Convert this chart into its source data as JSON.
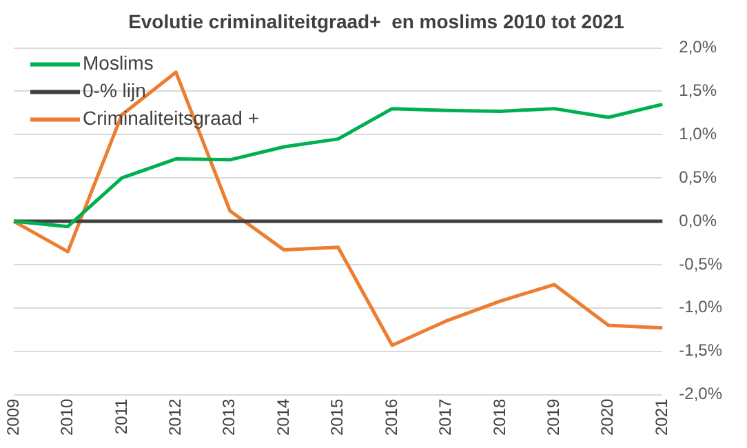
{
  "chart_data": {
    "type": "line",
    "title": "Evolutie criminaliteitgraad+  en moslims 2010 tot 2021",
    "categories": [
      "2009",
      "2010",
      "2011",
      "2012",
      "2013",
      "2014",
      "2015",
      "2016",
      "2017",
      "2018",
      "2019",
      "2020",
      "2021"
    ],
    "series": [
      {
        "name": "Moslims",
        "color": "#00b050",
        "values": [
          0,
          -0.06,
          0.5,
          0.72,
          0.71,
          0.86,
          0.95,
          1.3,
          1.28,
          1.27,
          1.3,
          1.2,
          1.35
        ]
      },
      {
        "name": "0-% lijn",
        "color": "#404040",
        "values": [
          0,
          0,
          0,
          0,
          0,
          0,
          0,
          0,
          0,
          0,
          0,
          0,
          0
        ]
      },
      {
        "name": "Criminaliteitsgraad +",
        "color": "#ed7d31",
        "values": [
          0,
          -0.35,
          1.23,
          1.72,
          0.12,
          -0.33,
          -0.3,
          -1.43,
          -1.15,
          -0.92,
          -0.73,
          -1.2,
          -1.23
        ]
      }
    ],
    "ylim": [
      -2,
      2
    ],
    "yticks": [
      {
        "value": -2,
        "label": "-2,0%"
      },
      {
        "value": -1.5,
        "label": "-1,5%"
      },
      {
        "value": -1,
        "label": "-1,0%"
      },
      {
        "value": -0.5,
        "label": "-0,5%"
      },
      {
        "value": 0,
        "label": "0,0%"
      },
      {
        "value": 0.5,
        "label": "0,5%"
      },
      {
        "value": 1,
        "label": "1,0%"
      },
      {
        "value": 1.5,
        "label": "1,5%"
      },
      {
        "value": 2,
        "label": "2,0%"
      }
    ],
    "grid": "y",
    "legend": "top left",
    "marker": "none",
    "line_style": "solid"
  }
}
